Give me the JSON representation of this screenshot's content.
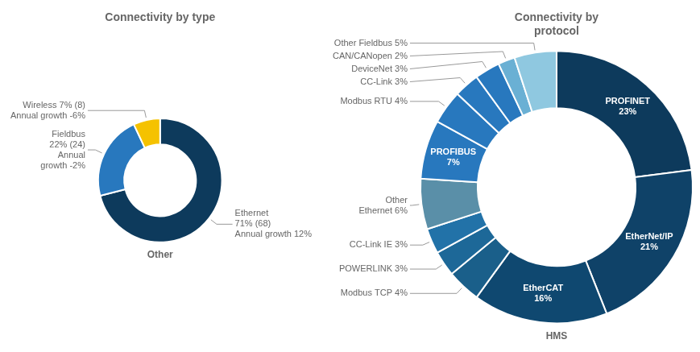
{
  "chart_data": [
    {
      "type": "doughnut",
      "title": "Connectivity by type",
      "values": [
        71,
        22,
        7
      ],
      "value_labels": [
        "Ethernet\n71% (68)\nAnnual growth 12%",
        "Fieldbus\n22% (24)\nAnnual\ngrowth -2%",
        "Wireless 7% (8)\nAnnual growth -6%"
      ],
      "colors": [
        "#0d3a5c",
        "#2878be",
        "#f5c200"
      ],
      "data_labels": true,
      "annotations": [
        "Other"
      ]
    },
    {
      "type": "doughnut",
      "title": "Connectivity by\nprotocol",
      "values": [
        23,
        21,
        16,
        4,
        3,
        3,
        6,
        7,
        4,
        3,
        3,
        2,
        5
      ],
      "value_labels": [
        "PROFINET\n23%",
        "EtherNet/IP\n21%",
        "EtherCAT\n16%",
        "Modbus TCP 4%",
        "POWERLINK 3%",
        "CC-Link IE 3%",
        "Other\nEthernet 6%",
        "PROFIBUS\n7%",
        "Modbus RTU 4%",
        "CC-Link 3%",
        "DeviceNet 3%",
        "CAN/CANopen 2%",
        "Other Fieldbus 5%"
      ],
      "colors": [
        "#0d3a5c",
        "#0f4268",
        "#0f4870",
        "#1a5f8a",
        "#1d6898",
        "#2272a8",
        "#5a8fa8",
        "#2878be",
        "#2878be",
        "#2878be",
        "#2878be",
        "#6ab0d4",
        "#8fc8e0"
      ],
      "data_labels": true,
      "annotations": [
        "HMS"
      ]
    }
  ]
}
